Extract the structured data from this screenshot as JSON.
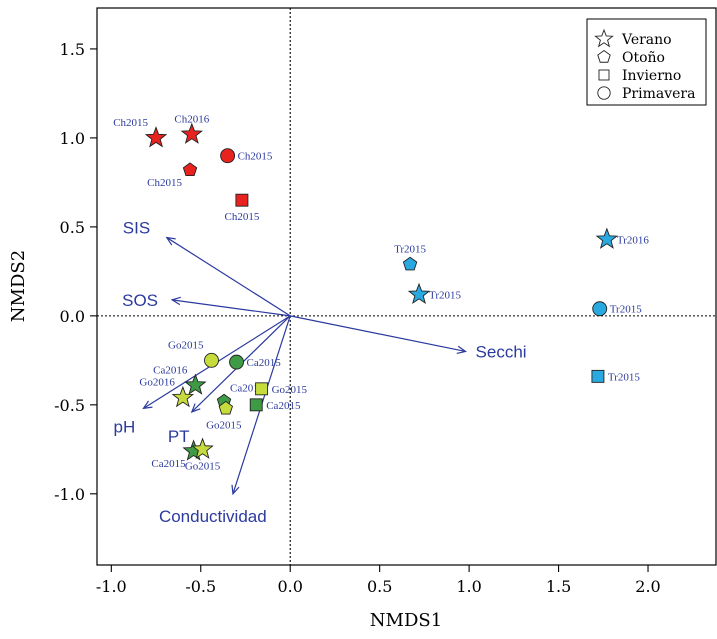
{
  "chart_data": {
    "type": "scatter",
    "title": "",
    "xlabel": "NMDS1",
    "ylabel": "NMDS2",
    "xlim": [
      -1.08,
      2.38
    ],
    "ylim": [
      -1.4,
      1.73
    ],
    "xticks": [
      "-1.0",
      "-0.5",
      "0.0",
      "0.5",
      "1.0",
      "1.5",
      "2.0"
    ],
    "xtick_values": [
      -1.0,
      -0.5,
      0.0,
      0.5,
      1.0,
      1.5,
      2.0
    ],
    "yticks": [
      "-1.0",
      "-0.5",
      "0.0",
      "0.5",
      "1.0",
      "1.5"
    ],
    "ytick_values": [
      -1.0,
      -0.5,
      0.0,
      0.5,
      1.0,
      1.5
    ],
    "reference_lines": {
      "x": 0,
      "y": 0,
      "style": "dotted"
    },
    "legend": {
      "placement": "top-right",
      "entries": [
        {
          "label": "Verano",
          "shape": "star"
        },
        {
          "label": "Otoño",
          "shape": "pentagon"
        },
        {
          "label": "Invierno",
          "shape": "square"
        },
        {
          "label": "Primavera",
          "shape": "circle"
        }
      ]
    },
    "colors": {
      "Ch": "#e8231f",
      "Tr": "#2aa8e0",
      "Ca": "#3e9a45",
      "Go": "#c6dc3c",
      "vectors": "#2b3a9e"
    },
    "points": [
      {
        "label": "Ch2015",
        "site": "Ch",
        "shape": "star",
        "x": -0.75,
        "y": 1.0,
        "label_pos": "above-left"
      },
      {
        "label": "Ch2016",
        "site": "Ch",
        "shape": "star",
        "x": -0.55,
        "y": 1.02,
        "label_pos": "above"
      },
      {
        "label": "Ch2015",
        "site": "Ch",
        "shape": "pentagon",
        "x": -0.56,
        "y": 0.82,
        "label_pos": "below-left"
      },
      {
        "label": "Ch2015",
        "site": "Ch",
        "shape": "square",
        "x": -0.27,
        "y": 0.65,
        "label_pos": "below"
      },
      {
        "label": "Ch2015",
        "site": "Ch",
        "shape": "circle",
        "x": -0.35,
        "y": 0.9,
        "label_pos": "right"
      },
      {
        "label": "Tr2016",
        "site": "Tr",
        "shape": "star",
        "x": 1.77,
        "y": 0.43,
        "label_pos": "right"
      },
      {
        "label": "Tr2015",
        "site": "Tr",
        "shape": "star",
        "x": 0.72,
        "y": 0.12,
        "label_pos": "right"
      },
      {
        "label": "Tr2015",
        "site": "Tr",
        "shape": "pentagon",
        "x": 0.67,
        "y": 0.29,
        "label_pos": "above"
      },
      {
        "label": "Tr2015",
        "site": "Tr",
        "shape": "circle",
        "x": 1.73,
        "y": 0.04,
        "label_pos": "right"
      },
      {
        "label": "Tr2015",
        "site": "Tr",
        "shape": "square",
        "x": 1.72,
        "y": -0.34,
        "label_pos": "right"
      },
      {
        "label": "Go2015",
        "site": "Go",
        "shape": "circle",
        "x": -0.44,
        "y": -0.25,
        "label_pos": "above-left"
      },
      {
        "label": "Ca2015",
        "site": "Ca",
        "shape": "circle",
        "x": -0.3,
        "y": -0.26,
        "label_pos": "right"
      },
      {
        "label": "Ca2016",
        "site": "Ca",
        "shape": "star",
        "x": -0.53,
        "y": -0.39,
        "label_pos": "above-left"
      },
      {
        "label": "Go2016",
        "site": "Go",
        "shape": "star",
        "x": -0.6,
        "y": -0.46,
        "label_pos": "above-left"
      },
      {
        "label": "Ca2015",
        "site": "Ca",
        "shape": "pentagon",
        "x": -0.37,
        "y": -0.48,
        "label_pos": "above-right"
      },
      {
        "label": "Go2015",
        "site": "Go",
        "shape": "pentagon",
        "x": -0.36,
        "y": -0.52,
        "label_pos": "below-right"
      },
      {
        "label": "Go2015",
        "site": "Go",
        "shape": "square",
        "x": -0.16,
        "y": -0.41,
        "label_pos": "right"
      },
      {
        "label": "Ca2015",
        "site": "Ca",
        "shape": "square",
        "x": -0.19,
        "y": -0.5,
        "label_pos": "right"
      },
      {
        "label": "Ca2015",
        "site": "Ca",
        "shape": "star",
        "x": -0.54,
        "y": -0.76,
        "label_pos": "below-left"
      },
      {
        "label": "Go2015",
        "site": "Go",
        "shape": "star",
        "x": -0.49,
        "y": -0.75,
        "label_pos": "below"
      }
    ],
    "vectors": [
      {
        "label": "SIS",
        "x": -0.69,
        "y": 0.44
      },
      {
        "label": "SOS",
        "x": -0.66,
        "y": 0.09
      },
      {
        "label": "Secchi",
        "x": 0.98,
        "y": -0.2
      },
      {
        "label": "pH",
        "x": -0.82,
        "y": -0.52
      },
      {
        "label": "PT",
        "x": -0.55,
        "y": -0.54
      },
      {
        "label": "Conductividad",
        "x": -0.32,
        "y": -1.0
      }
    ]
  }
}
